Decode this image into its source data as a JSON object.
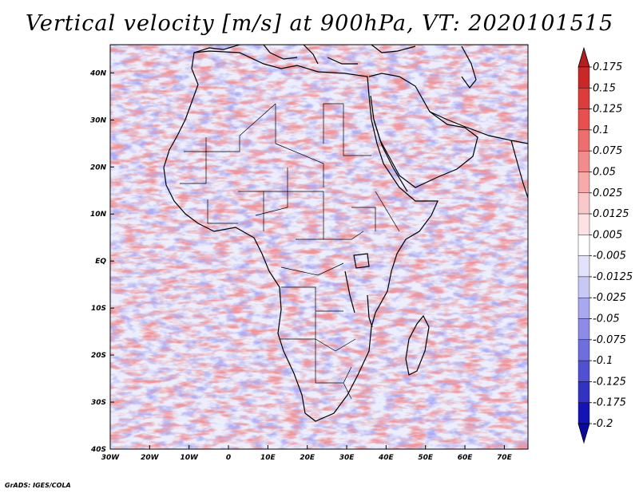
{
  "title": "Vertical velocity [m/s] at 900hPa, VT: 2020101515",
  "credit": "GrADS: IGES/COLA",
  "map": {
    "lat_labels": [
      "40N",
      "30N",
      "20N",
      "10N",
      "EQ",
      "10S",
      "20S",
      "30S",
      "40S"
    ],
    "lon_labels": [
      "30W",
      "20W",
      "10W",
      "0",
      "10E",
      "20E",
      "30E",
      "40E",
      "50E",
      "60E",
      "70E"
    ],
    "lon_range": [
      -30,
      76
    ],
    "lat_range": [
      -40,
      46
    ]
  },
  "colorbar": {
    "labels": [
      "0.175",
      "0.15",
      "0.125",
      "0.1",
      "0.075",
      "0.05",
      "0.025",
      "0.0125",
      "0.005",
      "-0.005",
      "-0.0125",
      "-0.025",
      "-0.05",
      "-0.075",
      "-0.1",
      "-0.125",
      "-0.175",
      "-0.2"
    ],
    "colors": [
      "#b41e1e",
      "#c82828",
      "#dc3c3c",
      "#e85050",
      "#ee6e6e",
      "#f28c8c",
      "#f6aaaa",
      "#f9c8c8",
      "#fce2e2",
      "#ffffff",
      "#e2e2fb",
      "#c8c8f5",
      "#a8a8ee",
      "#8c8ce6",
      "#6e6edc",
      "#5050d2",
      "#3232c3",
      "#1414b4",
      "#0a0aa0"
    ]
  }
}
